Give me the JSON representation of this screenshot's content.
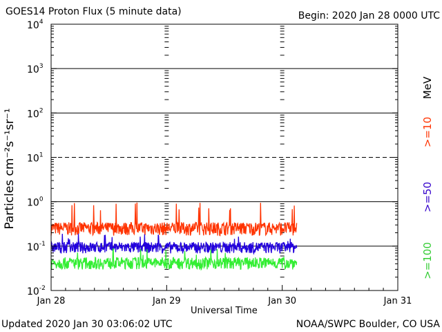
{
  "header": {
    "title": "GOES14 Proton Flux (5 minute data)",
    "begin": "Begin: 2020 Jan 28 0000 UTC"
  },
  "footer": {
    "updated": "Updated 2020 Jan 30 03:06:02 UTC",
    "credit": "NOAA/SWPC Boulder, CO USA"
  },
  "legend": {
    "unit": "MeV",
    "items": [
      {
        "label": ">=10",
        "color": "#ff3300"
      },
      {
        "label": ">=50",
        "color": "#3300cc"
      },
      {
        "label": ">=100",
        "color": "#33cc33"
      }
    ]
  },
  "chart_data": {
    "type": "line",
    "title": "GOES14 Proton Flux (5 minute data)",
    "xlabel": "Universal Time",
    "ylabel": "Particles cm⁻²s⁻¹sr⁻¹",
    "yscale": "log",
    "ylim": [
      0.01,
      10000
    ],
    "xlim_days": [
      0,
      3
    ],
    "x_ticks": [
      {
        "day": 0,
        "label": "Jan 28"
      },
      {
        "day": 1,
        "label": "Jan 29"
      },
      {
        "day": 2,
        "label": "Jan 30"
      },
      {
        "day": 3,
        "label": "Jan 31"
      }
    ],
    "y_ticks": [
      {
        "value": 0.01,
        "base": "10",
        "exp": "-2"
      },
      {
        "value": 0.1,
        "base": "10",
        "exp": "-1"
      },
      {
        "value": 1,
        "base": "10",
        "exp": "0"
      },
      {
        "value": 10,
        "base": "10",
        "exp": "1"
      },
      {
        "value": 100,
        "base": "10",
        "exp": "2"
      },
      {
        "value": 1000,
        "base": "10",
        "exp": "3"
      },
      {
        "value": 10000,
        "base": "10",
        "exp": "4"
      }
    ],
    "threshold_line": {
      "value": 10,
      "style": "dashed"
    },
    "series": [
      {
        "name": ">=10 MeV",
        "color": "#ff3300",
        "base": 0.23,
        "noise_low": 0.75,
        "noise_high": 1.5,
        "spike": 0.8,
        "end_day": 2.125
      },
      {
        "name": ">=50 MeV",
        "color": "#2200dd",
        "base": 0.085,
        "noise_low": 0.8,
        "noise_high": 1.45,
        "spike": 0.16,
        "end_day": 2.125
      },
      {
        "name": ">=100 MeV",
        "color": "#33ee33",
        "base": 0.035,
        "noise_low": 0.85,
        "noise_high": 1.6,
        "spike": 0.075,
        "end_day": 2.125
      }
    ]
  }
}
